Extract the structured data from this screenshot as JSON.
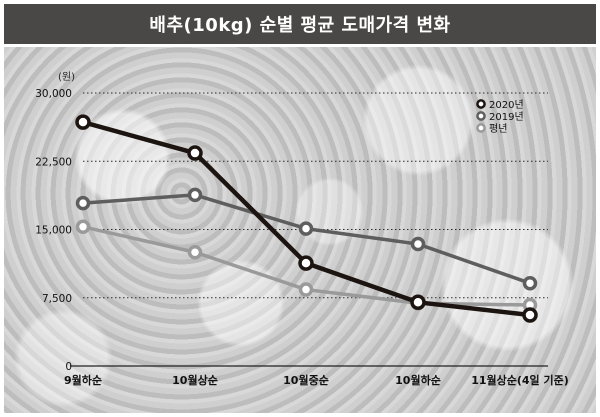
{
  "chart_data": {
    "type": "line",
    "title": "배추(10kg) 순별 평균 도매가격 변화",
    "unit_label": "(원)",
    "categories": [
      "9월하순",
      "10월상순",
      "10월중순",
      "10월하순",
      "11월상순(4일 기준)"
    ],
    "y_ticks": [
      "30,000",
      "22,500",
      "15,000",
      "7,500",
      "0"
    ],
    "y_tick_values": [
      30000,
      22500,
      15000,
      7500,
      0
    ],
    "ylim": [
      0,
      30000
    ],
    "grid": "dotted-horizontal",
    "legend_position": "top-right",
    "series": [
      {
        "name": "2020년",
        "color": "#1c1410",
        "marker_fill": "#ffffff",
        "values": [
          26800,
          23400,
          11300,
          7000,
          5600
        ]
      },
      {
        "name": "2019년",
        "color": "#5e5e5e",
        "marker_fill": "#ffffff",
        "values": [
          17900,
          18800,
          15100,
          13400,
          9100
        ]
      },
      {
        "name": "평년",
        "color": "#9a9a9a",
        "marker_fill": "#ffffff",
        "values": [
          15300,
          12500,
          8400,
          6900,
          6700
        ]
      }
    ]
  }
}
